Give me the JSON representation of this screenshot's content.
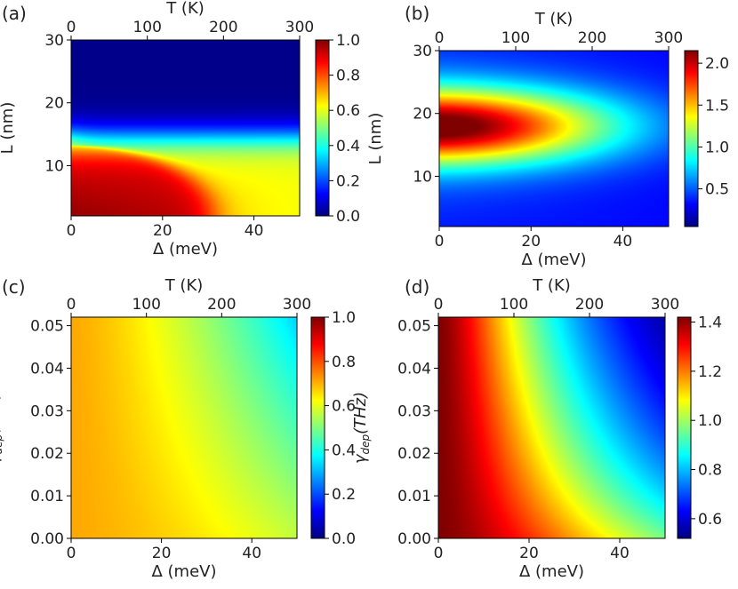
{
  "chart_data": [
    {
      "panel": "(a)",
      "type": "heatmap",
      "colormap": "jet",
      "xlabel": "Δ (meV)",
      "xlim": [
        0,
        50
      ],
      "xticks": [
        "0",
        "20",
        "40"
      ],
      "top_xlabel": "T (K)",
      "top_xlim": [
        0,
        300
      ],
      "top_xticks": [
        "0",
        "100",
        "200",
        "300"
      ],
      "ylabel": "L (nm)",
      "ylim": [
        2,
        30
      ],
      "yticks": [
        "10",
        "20",
        "30"
      ],
      "colorbar": {
        "min": 0.0,
        "max": 1.0,
        "ticks": [
          "0.0",
          "0.2",
          "0.4",
          "0.6",
          "0.8",
          "1.0"
        ]
      }
    },
    {
      "panel": "(b)",
      "type": "heatmap",
      "colormap": "jet",
      "xlabel": "Δ (meV)",
      "xlim": [
        0,
        50
      ],
      "xticks": [
        "0",
        "20",
        "40"
      ],
      "top_xlabel": "T (K)",
      "top_xlim": [
        0,
        300
      ],
      "top_xticks": [
        "0",
        "100",
        "200",
        "300"
      ],
      "ylabel": "L (nm)",
      "ylim": [
        2,
        30
      ],
      "yticks": [
        "10",
        "20",
        "30"
      ],
      "colorbar": {
        "min": 0.05,
        "max": 2.15,
        "ticks": [
          "0.5",
          "1.0",
          "1.5",
          "2.0"
        ]
      }
    },
    {
      "panel": "(c)",
      "type": "heatmap",
      "colormap": "jet",
      "xlabel": "Δ (meV)",
      "xlim": [
        0,
        50
      ],
      "xticks": [
        "0",
        "20",
        "40"
      ],
      "top_xlabel": "T (K)",
      "top_xlim": [
        0,
        300
      ],
      "top_xticks": [
        "0",
        "100",
        "200",
        "300"
      ],
      "ylabel": "γdep(THz)",
      "ylim": [
        0.0,
        0.052
      ],
      "yticks": [
        "0.00",
        "0.01",
        "0.02",
        "0.03",
        "0.04",
        "0.05"
      ],
      "colorbar": {
        "min": 0.0,
        "max": 1.0,
        "ticks": [
          "0.0",
          "0.2",
          "0.4",
          "0.6",
          "0.8",
          "1.0"
        ]
      }
    },
    {
      "panel": "(d)",
      "type": "heatmap",
      "colormap": "jet",
      "xlabel": "Δ (meV)",
      "xlim": [
        0,
        50
      ],
      "xticks": [
        "0",
        "20",
        "40"
      ],
      "top_xlabel": "T (K)",
      "top_xlim": [
        0,
        300
      ],
      "top_xticks": [
        "0",
        "100",
        "200",
        "300"
      ],
      "ylabel": "γdep(THz)",
      "ylim": [
        0.0,
        0.052
      ],
      "yticks": [
        "0.00",
        "0.01",
        "0.02",
        "0.03",
        "0.04",
        "0.05"
      ],
      "colorbar": {
        "min": 0.52,
        "max": 1.42,
        "ticks": [
          "0.6",
          "0.8",
          "1.0",
          "1.2",
          "1.4"
        ]
      }
    }
  ]
}
